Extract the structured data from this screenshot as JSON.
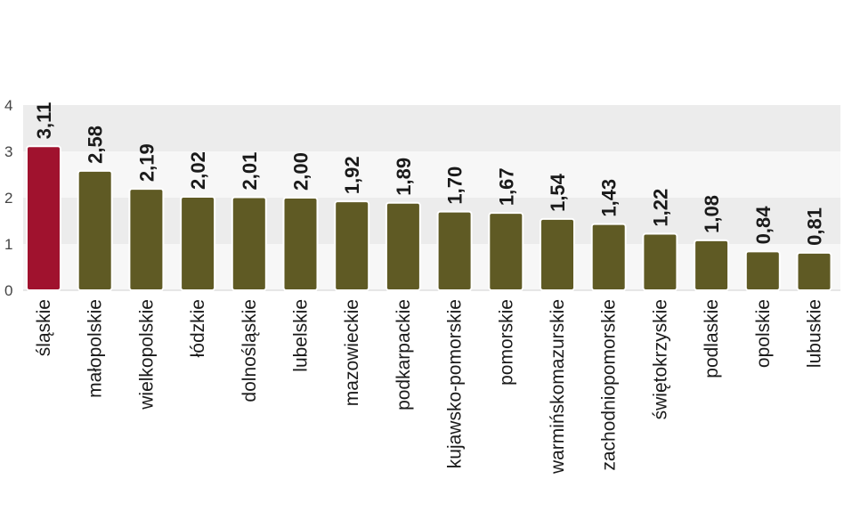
{
  "chart_data": {
    "type": "bar",
    "categories": [
      "śląskie",
      "małopolskie",
      "wielkopolskie",
      "łódzkie",
      "dolnośląskie",
      "lubelskie",
      "mazowieckie",
      "podkarpackie",
      "kujawsko-pomorskie",
      "pomorskie",
      "warmińskomazurskie",
      "zachodniopomorskie",
      "świętokrzyskie",
      "podlaskie",
      "opolskie",
      "lubuskie"
    ],
    "values": [
      3.11,
      2.58,
      2.19,
      2.02,
      2.01,
      2.0,
      1.92,
      1.89,
      1.7,
      1.67,
      1.54,
      1.43,
      1.22,
      1.08,
      0.84,
      0.81
    ],
    "value_labels": [
      "3,11",
      "2,58",
      "2,19",
      "2,02",
      "2,01",
      "2,00",
      "1,92",
      "1,89",
      "1,70",
      "1,67",
      "1,54",
      "1,43",
      "1,22",
      "1,08",
      "0,84",
      "0,81"
    ],
    "yticks": [
      0,
      1,
      2,
      3,
      4
    ],
    "ylim": [
      0,
      4
    ],
    "highlight_index": 0,
    "grid": true,
    "colors": {
      "highlight": "#a0122e",
      "bar": "#5f5a24",
      "grid_band": "#ececec"
    }
  }
}
